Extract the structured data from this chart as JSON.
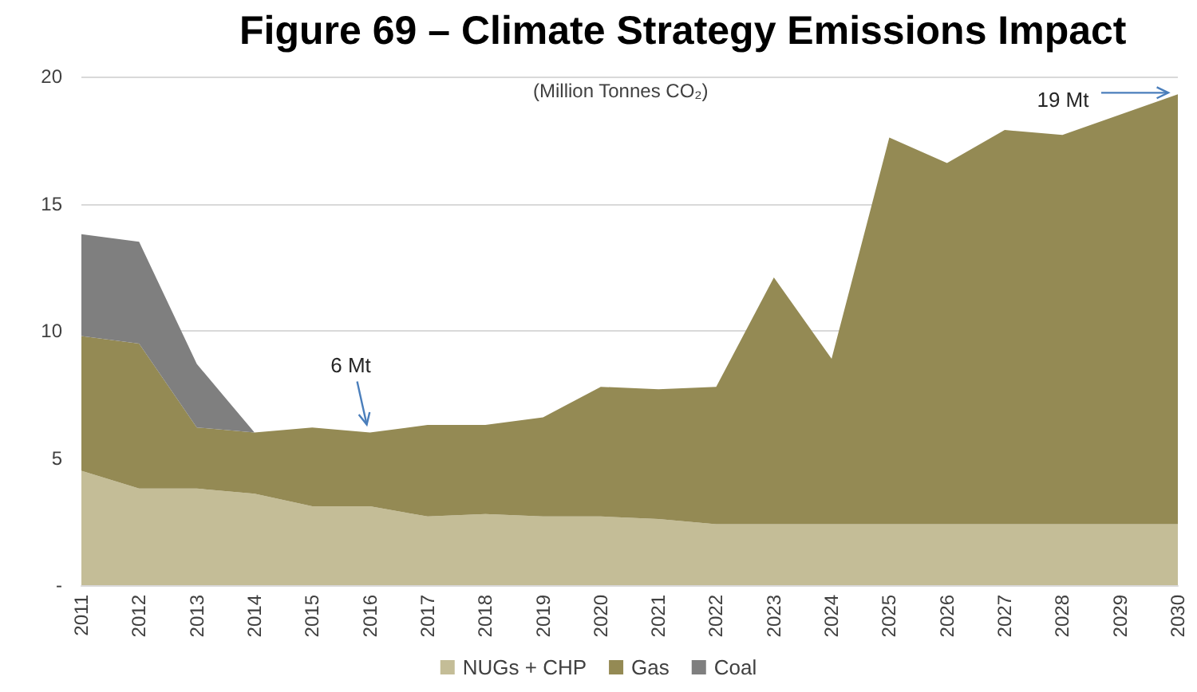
{
  "chart_data": {
    "type": "area",
    "title": "Figure 69 – Climate Strategy Emissions Impact",
    "subtitle": "(Million Tonnes CO₂)",
    "categories": [
      "2011",
      "2012",
      "2013",
      "2014",
      "2015",
      "2016",
      "2017",
      "2018",
      "2019",
      "2020",
      "2021",
      "2022",
      "2023",
      "2024",
      "2025",
      "2026",
      "2027",
      "2028",
      "2029",
      "2030"
    ],
    "series": [
      {
        "name": "NUGs + CHP",
        "color": "#c4bd97",
        "values": [
          4.5,
          3.8,
          3.8,
          3.6,
          3.1,
          3.1,
          2.7,
          2.8,
          2.7,
          2.7,
          2.6,
          2.4,
          2.4,
          2.4,
          2.4,
          2.4,
          2.4,
          2.4,
          2.4,
          2.4
        ]
      },
      {
        "name": "Gas",
        "color": "#948a54",
        "values": [
          5.3,
          5.7,
          2.4,
          2.4,
          3.1,
          2.9,
          3.6,
          3.5,
          3.9,
          5.1,
          5.1,
          5.4,
          9.7,
          6.5,
          15.2,
          14.2,
          15.5,
          15.3,
          16.1,
          16.9
        ]
      },
      {
        "name": "Coal",
        "color": "#7f7f7f",
        "values": [
          4.0,
          4.0,
          2.5,
          0,
          null,
          null,
          null,
          null,
          null,
          null,
          null,
          null,
          null,
          null,
          null,
          null,
          null,
          null,
          null,
          null
        ]
      }
    ],
    "stacked": true,
    "ylim": [
      0,
      20
    ],
    "yticks": [
      {
        "value": 0,
        "label": "-"
      },
      5,
      10,
      15,
      20
    ],
    "grid": "y",
    "legend": "bottom",
    "annotations": [
      {
        "text": "6 Mt",
        "x": "2016",
        "y": 6.0
      },
      {
        "text": "19 Mt",
        "x": "2030",
        "y": 19.3
      }
    ]
  }
}
